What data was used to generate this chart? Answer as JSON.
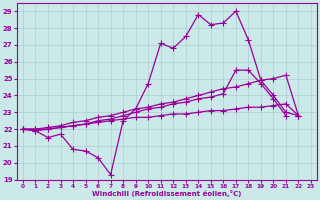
{
  "xlabel": "Windchill (Refroidissement éolien,°C)",
  "bg_color": "#cbe9e9",
  "grid_color": "#aacfcf",
  "line_color": "#990099",
  "xlim": [
    -0.5,
    23.5
  ],
  "ylim": [
    19,
    29.5
  ],
  "xticks": [
    0,
    1,
    2,
    3,
    4,
    5,
    6,
    7,
    8,
    9,
    10,
    11,
    12,
    13,
    14,
    15,
    16,
    17,
    18,
    19,
    20,
    21,
    22,
    23
  ],
  "yticks": [
    19,
    20,
    21,
    22,
    23,
    24,
    25,
    26,
    27,
    28,
    29
  ],
  "series": [
    {
      "x": [
        0,
        1,
        2,
        3,
        4,
        5,
        6,
        7,
        8,
        9,
        10,
        11,
        12,
        13,
        14,
        15,
        16,
        17,
        18,
        19,
        20,
        21,
        22,
        23
      ],
      "y": [
        22.0,
        21.9,
        21.5,
        21.7,
        20.8,
        20.7,
        20.3,
        19.3,
        22.5,
        23.2,
        24.7,
        27.1,
        26.8,
        27.5,
        28.8,
        28.2,
        28.3,
        29.0,
        27.3,
        24.9,
        24.0,
        23.0,
        22.8,
        null
      ]
    },
    {
      "x": [
        0,
        1,
        2,
        3,
        4,
        5,
        6,
        7,
        8,
        9,
        10,
        11,
        12,
        13,
        14,
        15,
        16,
        17,
        18,
        19,
        20,
        21,
        22,
        23
      ],
      "y": [
        22.0,
        21.9,
        22.0,
        22.1,
        22.2,
        22.3,
        22.5,
        22.6,
        22.8,
        23.0,
        23.2,
        23.3,
        23.5,
        23.6,
        23.8,
        23.9,
        24.1,
        25.5,
        25.5,
        24.7,
        23.8,
        22.8,
        null,
        null
      ]
    },
    {
      "x": [
        0,
        1,
        2,
        3,
        4,
        5,
        6,
        7,
        8,
        9,
        10,
        11,
        12,
        13,
        14,
        15,
        16,
        17,
        18,
        19,
        20,
        21,
        22,
        23
      ],
      "y": [
        22.0,
        22.0,
        22.1,
        22.2,
        22.4,
        22.5,
        22.7,
        22.8,
        23.0,
        23.2,
        23.3,
        23.5,
        23.6,
        23.8,
        24.0,
        24.2,
        24.4,
        24.5,
        24.7,
        24.9,
        25.0,
        25.2,
        22.8,
        null
      ]
    },
    {
      "x": [
        0,
        1,
        2,
        3,
        4,
        5,
        6,
        7,
        8,
        9,
        10,
        11,
        12,
        13,
        14,
        15,
        16,
        17,
        18,
        19,
        20,
        21,
        22,
        23
      ],
      "y": [
        22.0,
        22.0,
        22.0,
        22.1,
        22.2,
        22.3,
        22.4,
        22.5,
        22.6,
        22.7,
        22.7,
        22.8,
        22.9,
        22.9,
        23.0,
        23.1,
        23.1,
        23.2,
        23.3,
        23.3,
        23.4,
        23.5,
        22.8,
        null
      ]
    }
  ],
  "marker": "+",
  "markersize": 4,
  "linewidth": 0.9
}
